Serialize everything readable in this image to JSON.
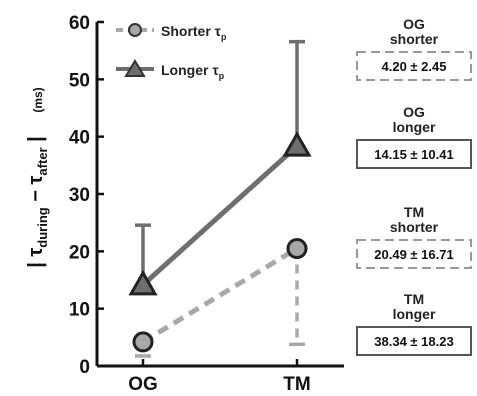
{
  "chart_data": {
    "type": "line",
    "categories": [
      "OG",
      "TM"
    ],
    "ylim": [
      0,
      60
    ],
    "yticks": [
      0,
      10,
      20,
      30,
      40,
      50,
      60
    ],
    "ylabel": {
      "open": "| τ",
      "during": "during",
      "minus": " − τ",
      "after": "after",
      "close": " |",
      "unit": "(ms)"
    },
    "series": [
      {
        "name": "Shorter τp",
        "name_main": "Shorter τ",
        "name_sub": "p",
        "values": [
          4.2,
          20.49
        ],
        "sd": [
          2.45,
          16.71
        ],
        "color": "#a8a8a8",
        "marker": "circle",
        "dashed": true
      },
      {
        "name": "Longer τp",
        "name_main": "Longer τ",
        "name_sub": "p",
        "values": [
          14.15,
          38.34
        ],
        "sd": [
          10.41,
          18.23
        ],
        "color": "#6e6e6e",
        "marker": "triangle",
        "dashed": false
      }
    ],
    "annotations": [
      {
        "line1": "OG",
        "line2": "shorter",
        "value": "4.20 ± 2.45",
        "dashed": true
      },
      {
        "line1": "OG",
        "line2": "longer",
        "value": "14.15 ± 10.41",
        "dashed": false
      },
      {
        "line1": "TM",
        "line2": "shorter",
        "value": "20.49 ± 16.71",
        "dashed": true
      },
      {
        "line1": "TM",
        "line2": "longer",
        "value": "38.34 ± 18.23",
        "dashed": false
      }
    ]
  }
}
